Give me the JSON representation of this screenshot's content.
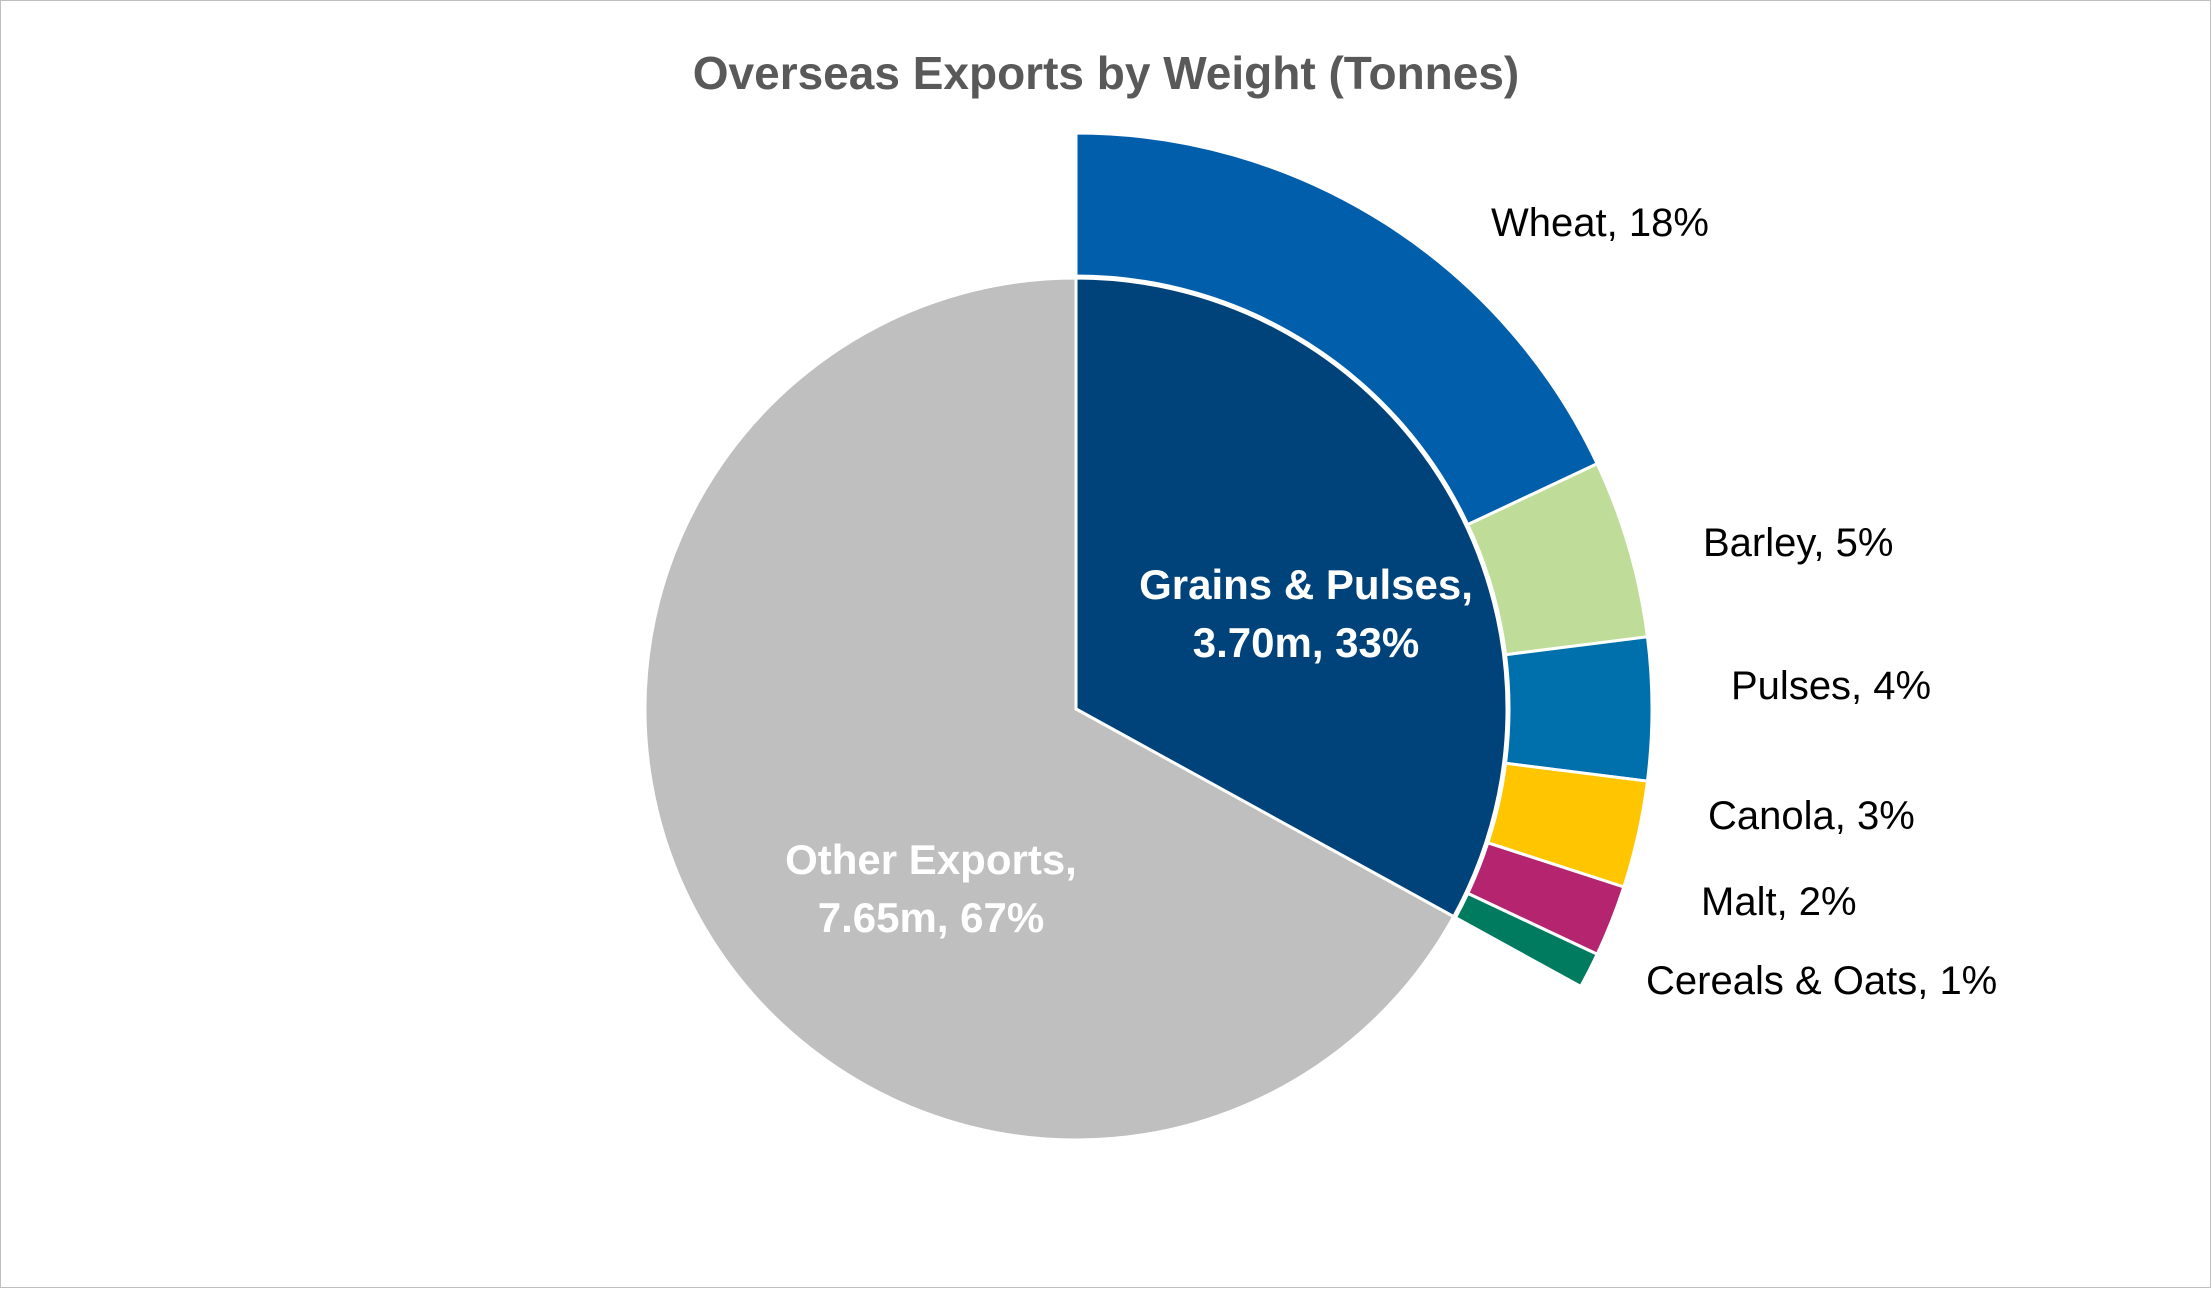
{
  "chart_data": {
    "type": "pie",
    "title": "Overseas Exports by Weight (Tonnes)",
    "inner": [
      {
        "name": "Grains & Pulses",
        "value_label": "3.70m",
        "percent": 33,
        "color": "#00427a",
        "label_line1": "Grains & Pulses,",
        "label_line2": "3.70m, 33%"
      },
      {
        "name": "Other Exports",
        "value_label": "7.65m",
        "percent": 67,
        "color": "#bfbfbf",
        "label_line1": "Other Exports,",
        "label_line2": "7.65m, 67%"
      }
    ],
    "outer": [
      {
        "name": "Wheat",
        "percent": 18,
        "color": "#005eab",
        "label": "Wheat, 18%"
      },
      {
        "name": "Barley",
        "percent": 5,
        "color": "#bfdd98",
        "label": "Barley, 5%"
      },
      {
        "name": "Pulses",
        "percent": 4,
        "color": "#0070ad",
        "label": "Pulses, 4%"
      },
      {
        "name": "Canola",
        "percent": 3,
        "color": "#ffc600",
        "label": "Canola, 3%"
      },
      {
        "name": "Malt",
        "percent": 2,
        "color": "#b4246f",
        "label": "Malt, 2%"
      },
      {
        "name": "Cereals & Oats",
        "percent": 1,
        "color": "#007b5f",
        "label": "Cereals & Oats, 1%"
      }
    ]
  }
}
